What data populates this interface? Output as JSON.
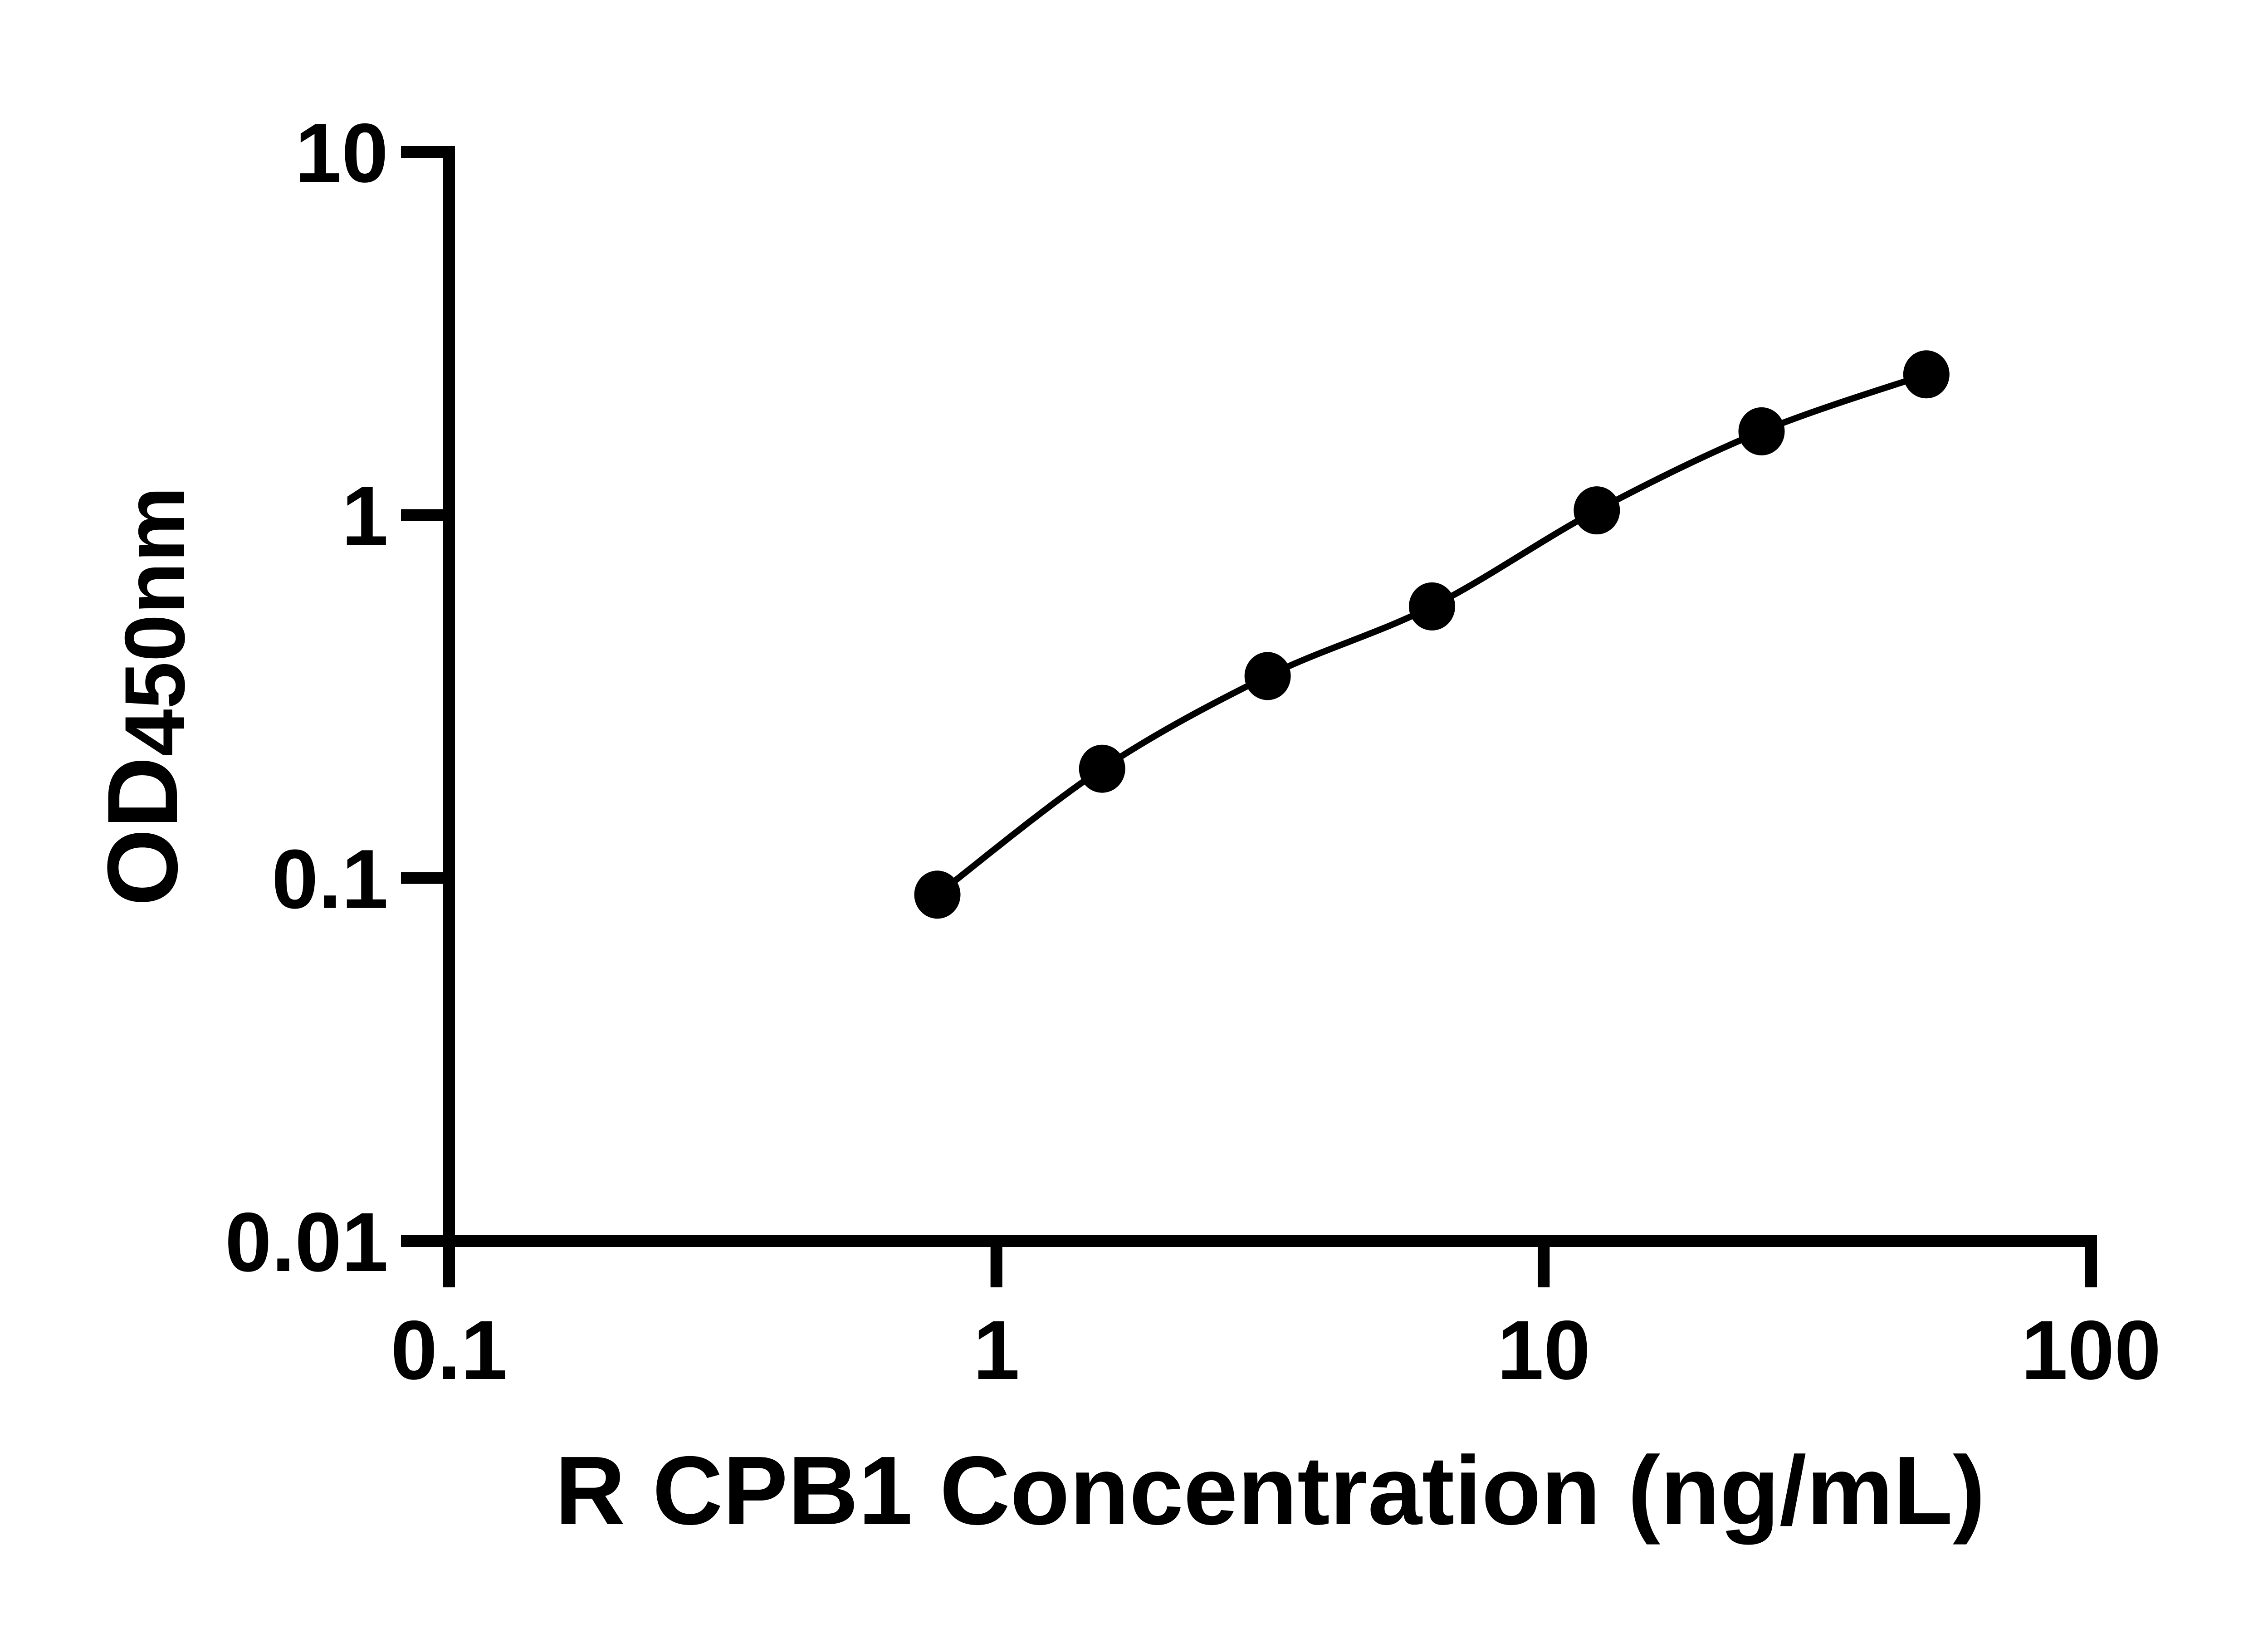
{
  "figure": {
    "background_color": "#ffffff",
    "foreground_color": "#000000"
  },
  "chart_data": {
    "type": "scatter",
    "connected": true,
    "curve_style": "smooth-fit-line",
    "title": "",
    "xlabel": "R CPB1 Concentration (ng/mL)",
    "ylabel_main": "OD",
    "ylabel_subscript": "450nm",
    "x": [
      0.78,
      1.56,
      3.13,
      6.25,
      12.5,
      25,
      50
    ],
    "y": [
      0.09,
      0.2,
      0.36,
      0.56,
      1.03,
      1.7,
      2.44
    ],
    "xscale": "log",
    "yscale": "log",
    "xlim": [
      0.1,
      100
    ],
    "ylim": [
      0.01,
      10
    ],
    "x_tick_values": [
      0.1,
      1,
      10,
      100
    ],
    "x_tick_labels": [
      "0.1",
      "1",
      "10",
      "100"
    ],
    "y_tick_values": [
      10,
      1,
      0.1,
      0.01
    ],
    "y_tick_labels": [
      "10",
      "1",
      "0.1",
      "0.01"
    ],
    "grid": false,
    "legend": "none",
    "marker_shape": "filled-circle",
    "marker_color": "#000000",
    "line_color": "#000000",
    "axis_color": "#000000"
  }
}
